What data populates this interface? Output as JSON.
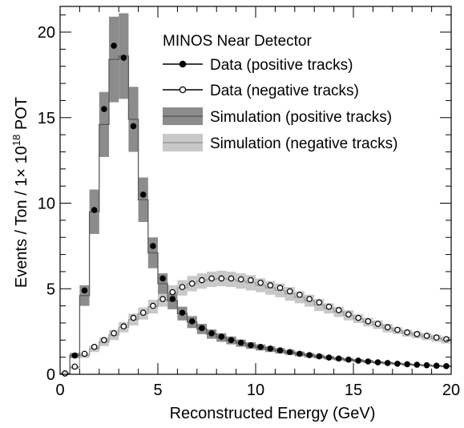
{
  "chart_data": {
    "type": "histogram",
    "xlabel": "Reconstructed Energy (GeV)",
    "ylabel": {
      "prefix": "Events / Ton / 1",
      "times": "×",
      "base": " 10",
      "exponent": "18",
      "suffix": " POT"
    },
    "xlim": [
      0,
      20
    ],
    "ylim": [
      0,
      21.5
    ],
    "x_ticks": [
      0,
      5,
      10,
      15,
      20
    ],
    "y_ticks": [
      0,
      5,
      10,
      15,
      20
    ],
    "legend": {
      "placement": "top-right",
      "title": "MINOS Near Detector",
      "entries": [
        "Data (positive tracks)",
        "Data (negative tracks)",
        "Simulation (positive tracks)",
        "Simulation (negative tracks)"
      ]
    },
    "colors": {
      "sim_positive_band": "#8c8c8c",
      "sim_positive_line": "#5a5a5a",
      "sim_negative_band": "#c8c8c8",
      "sim_negative_line": "#9a9a9a",
      "data": "#000000"
    },
    "bin_width": 0.5,
    "series": [
      {
        "name": "Data (positive tracks)",
        "kind": "points",
        "x": [
          0.25,
          0.75,
          1.25,
          1.75,
          2.25,
          2.75,
          3.25,
          3.75,
          4.25,
          4.75,
          5.25,
          5.75,
          6.25,
          6.75,
          7.25,
          7.75,
          8.25,
          8.75,
          9.25,
          9.75,
          10.25,
          10.75,
          11.25,
          11.75,
          12.25,
          12.75,
          13.25,
          13.75,
          14.25,
          14.75,
          15.25,
          15.75,
          16.25,
          16.75,
          17.25,
          17.75,
          18.25,
          18.75,
          19.25,
          19.75
        ],
        "y": [
          0.05,
          1.1,
          4.9,
          9.6,
          15.5,
          19.2,
          18.5,
          14.5,
          10.5,
          7.5,
          5.6,
          4.4,
          3.6,
          3.1,
          2.7,
          2.4,
          2.2,
          2.0,
          1.85,
          1.7,
          1.6,
          1.5,
          1.4,
          1.3,
          1.2,
          1.12,
          1.05,
          0.98,
          0.92,
          0.86,
          0.8,
          0.75,
          0.7,
          0.66,
          0.62,
          0.59,
          0.56,
          0.53,
          0.5,
          0.48
        ]
      },
      {
        "name": "Data (negative tracks)",
        "kind": "points",
        "x": [
          0.25,
          0.75,
          1.25,
          1.75,
          2.25,
          2.75,
          3.25,
          3.75,
          4.25,
          4.75,
          5.25,
          5.75,
          6.25,
          6.75,
          7.25,
          7.75,
          8.25,
          8.75,
          9.25,
          9.75,
          10.25,
          10.75,
          11.25,
          11.75,
          12.25,
          12.75,
          13.25,
          13.75,
          14.25,
          14.75,
          15.25,
          15.75,
          16.25,
          16.75,
          17.25,
          17.75,
          18.25,
          18.75,
          19.25,
          19.75
        ],
        "y": [
          0.05,
          0.45,
          1.2,
          1.6,
          2.0,
          2.4,
          2.8,
          3.3,
          3.6,
          4.0,
          4.4,
          4.8,
          5.1,
          5.3,
          5.5,
          5.6,
          5.6,
          5.6,
          5.55,
          5.5,
          5.35,
          5.2,
          5.05,
          4.85,
          4.65,
          4.4,
          4.2,
          3.95,
          3.75,
          3.5,
          3.3,
          3.1,
          2.95,
          2.75,
          2.6,
          2.45,
          2.35,
          2.25,
          2.15,
          2.05
        ]
      },
      {
        "name": "Simulation (positive tracks)",
        "kind": "band",
        "x": [
          0.25,
          0.75,
          1.25,
          1.75,
          2.25,
          2.75,
          3.25,
          3.75,
          4.25,
          4.75,
          5.25,
          5.75,
          6.25,
          6.75,
          7.25,
          7.75,
          8.25,
          8.75,
          9.25,
          9.75,
          10.25,
          10.75,
          11.25,
          11.75,
          12.25,
          12.75,
          13.25,
          13.75,
          14.25,
          14.75,
          15.25,
          15.75,
          16.25,
          16.75,
          17.25,
          17.75,
          18.25,
          18.75,
          19.25,
          19.75
        ],
        "y": [
          0.05,
          1.1,
          4.6,
          9.5,
          14.6,
          18.4,
          18.6,
          14.9,
          10.2,
          7.1,
          5.3,
          4.3,
          3.55,
          3.05,
          2.65,
          2.35,
          2.15,
          1.98,
          1.82,
          1.68,
          1.57,
          1.47,
          1.37,
          1.28,
          1.19,
          1.11,
          1.04,
          0.97,
          0.91,
          0.85,
          0.8,
          0.75,
          0.7,
          0.66,
          0.62,
          0.58,
          0.55,
          0.52,
          0.49,
          0.47
        ],
        "err": [
          0.02,
          0.15,
          0.6,
          1.3,
          1.9,
          2.5,
          2.5,
          1.9,
          1.3,
          0.9,
          0.6,
          0.5,
          0.4,
          0.35,
          0.3,
          0.27,
          0.25,
          0.23,
          0.21,
          0.19,
          0.18,
          0.17,
          0.16,
          0.15,
          0.14,
          0.13,
          0.12,
          0.11,
          0.1,
          0.1,
          0.09,
          0.09,
          0.08,
          0.08,
          0.07,
          0.07,
          0.06,
          0.06,
          0.06,
          0.06
        ]
      },
      {
        "name": "Simulation (negative tracks)",
        "kind": "band",
        "x": [
          0.25,
          0.75,
          1.25,
          1.75,
          2.25,
          2.75,
          3.25,
          3.75,
          4.25,
          4.75,
          5.25,
          5.75,
          6.25,
          6.75,
          7.25,
          7.75,
          8.25,
          8.75,
          9.25,
          9.75,
          10.25,
          10.75,
          11.25,
          11.75,
          12.25,
          12.75,
          13.25,
          13.75,
          14.25,
          14.75,
          15.25,
          15.75,
          16.25,
          16.75,
          17.25,
          17.75,
          18.25,
          18.75,
          19.25,
          19.75
        ],
        "y": [
          0.05,
          0.4,
          1.1,
          1.5,
          1.9,
          2.3,
          2.75,
          3.2,
          3.55,
          3.95,
          4.35,
          4.75,
          5.05,
          5.3,
          5.45,
          5.55,
          5.6,
          5.55,
          5.45,
          5.35,
          5.2,
          5.05,
          4.9,
          4.7,
          4.5,
          4.3,
          4.05,
          3.85,
          3.65,
          3.45,
          3.25,
          3.05,
          2.9,
          2.7,
          2.55,
          2.4,
          2.3,
          2.2,
          2.1,
          2.0
        ],
        "err": [
          0.02,
          0.1,
          0.15,
          0.2,
          0.25,
          0.3,
          0.3,
          0.35,
          0.35,
          0.4,
          0.4,
          0.45,
          0.45,
          0.45,
          0.45,
          0.45,
          0.45,
          0.45,
          0.45,
          0.45,
          0.4,
          0.4,
          0.4,
          0.4,
          0.35,
          0.35,
          0.35,
          0.3,
          0.3,
          0.3,
          0.25,
          0.25,
          0.25,
          0.25,
          0.2,
          0.2,
          0.2,
          0.2,
          0.2,
          0.2
        ]
      }
    ]
  }
}
